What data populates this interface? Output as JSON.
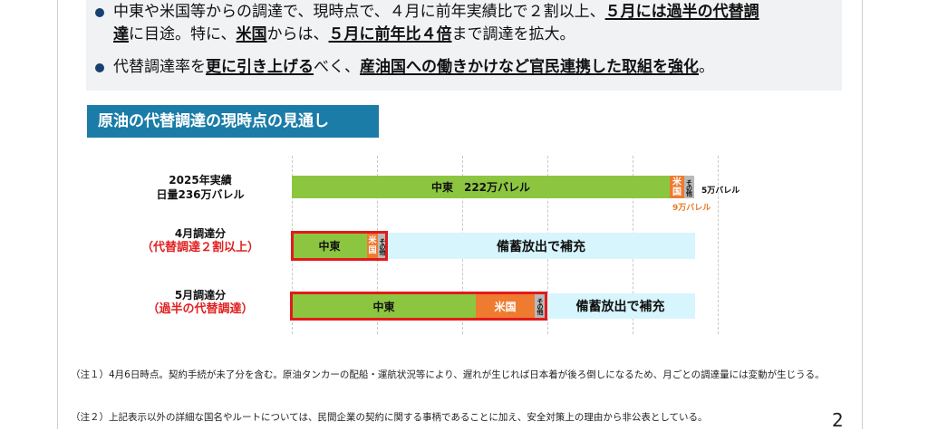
{
  "bullets": {
    "b1_line1_pre": "中東や米国等からの調達で、現時点で、４月に前年実績比で２割以上、",
    "b1_line1_emph": "５月には過半の代替調",
    "b1_line2_emph1": "達",
    "b1_line2_mid1": "に目途。特に、",
    "b1_line2_emph2": "米国",
    "b1_line2_mid2": "からは、",
    "b1_line2_emph3": "５月に前年比４倍",
    "b1_line2_post": "まで調達を拡大。",
    "b2_pre": "代替調達率を",
    "b2_emph1": "更に引き上げる",
    "b2_mid": "べく、",
    "b2_emph2": "産油国への働きかけなど官民連携した取組を強化",
    "b2_post": "。"
  },
  "section_title": "原油の代替調達の現時点の見通し",
  "rows": {
    "r1_label1": "2025年実績",
    "r1_label2": "日量236万バレル",
    "r1_green": "中東　222万バレル",
    "r1_orange": "米国",
    "r1_grey": "その他",
    "r1_side": "5万バレル",
    "r1_below": "9万バレル",
    "r2_label1": "4月調達分",
    "r2_label2": "（代替調達２割以上）",
    "r2_green": "中東",
    "r2_orange": "米国",
    "r2_grey": "その他",
    "r2_cyan": "備蓄放出で補充",
    "r3_label1": "5月調達分",
    "r3_label2": "（過半の代替調達）",
    "r3_green": "中東",
    "r3_orange": "米国",
    "r3_grey": "その他",
    "r3_cyan": "備蓄放出で補充"
  },
  "notes": {
    "n1": "（注１）4月6日時点。契約手続が未了分を含む。原油タンカーの配船・運航状況等により、遅れが生じれば日本着が後ろ倒しになるため、月ごとの調達量には変動が生じうる。",
    "n2": "（注２）上記表示以外の詳細な国名やルートについては、民間企業の契約に関する事柄であることに加え、安全対策上の理由から非公表としている。"
  },
  "page_number": "2",
  "colors": {
    "middle_east": "#8cc640",
    "usa": "#ee7b30",
    "other": "#b9b9b9",
    "reserve": "#d7f5fc",
    "highlight": "#e21a1a",
    "title_band": "#1b7ca8"
  }
}
